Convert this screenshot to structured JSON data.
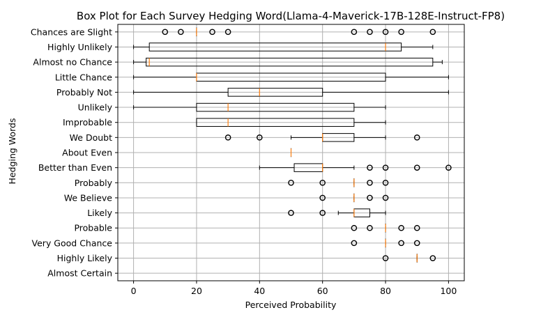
{
  "chart_data": {
    "type": "boxplot",
    "orientation": "horizontal",
    "title": "Box Plot for Each Survey Hedging Word(Llama-4-Maverick-17B-128E-Instruct-FP8)",
    "xlabel": "Perceived Probability",
    "ylabel": "Hedging Words",
    "xlim": [
      -5,
      105
    ],
    "xticks": [
      0,
      20,
      40,
      60,
      80,
      100
    ],
    "grid": true,
    "colors": {
      "box": "#000000",
      "median": "#ff7f0e",
      "grid": "#b0b0b0"
    },
    "categories": [
      "Chances are Slight",
      "Highly Unlikely",
      "Almost no Chance",
      "Little Chance",
      "Probably Not",
      "Unlikely",
      "Improbable",
      "We Doubt",
      "About Even",
      "Better than Even",
      "Probably",
      "We Believe",
      "Likely",
      "Probable",
      "Very Good Chance",
      "Highly Likely",
      "Almost Certain"
    ],
    "boxes": [
      {
        "label": "Chances are Slight",
        "whislo": 20,
        "q1": 20,
        "med": 20,
        "q3": 20,
        "whishi": 20,
        "fliers": [
          10,
          15,
          25,
          30,
          70,
          75,
          80,
          85,
          95
        ]
      },
      {
        "label": "Highly Unlikely",
        "whislo": 0,
        "q1": 5,
        "med": 80,
        "q3": 85,
        "whishi": 95,
        "fliers": []
      },
      {
        "label": "Almost no Chance",
        "whislo": 0,
        "q1": 4,
        "med": 5,
        "q3": 95,
        "whishi": 98,
        "fliers": []
      },
      {
        "label": "Little Chance",
        "whislo": 0,
        "q1": 20,
        "med": 20,
        "q3": 80,
        "whishi": 100,
        "fliers": []
      },
      {
        "label": "Probably Not",
        "whislo": 0,
        "q1": 30,
        "med": 40,
        "q3": 60,
        "whishi": 100,
        "fliers": []
      },
      {
        "label": "Unlikely",
        "whislo": 0,
        "q1": 20,
        "med": 30,
        "q3": 70,
        "whishi": 80,
        "fliers": []
      },
      {
        "label": "Improbable",
        "whislo": 20,
        "q1": 20,
        "med": 30,
        "q3": 70,
        "whishi": 80,
        "fliers": []
      },
      {
        "label": "We Doubt",
        "whislo": 50,
        "q1": 60,
        "med": 60,
        "q3": 70,
        "whishi": 80,
        "fliers": [
          30,
          40,
          90
        ]
      },
      {
        "label": "About Even",
        "whislo": 50,
        "q1": 50,
        "med": 50,
        "q3": 50,
        "whishi": 50,
        "fliers": []
      },
      {
        "label": "Better than Even",
        "whislo": 40,
        "q1": 51,
        "med": 60,
        "q3": 60,
        "whishi": 70,
        "fliers": [
          75,
          80,
          90,
          100
        ]
      },
      {
        "label": "Probably",
        "whislo": 70,
        "q1": 70,
        "med": 70,
        "q3": 70,
        "whishi": 70,
        "fliers": [
          50,
          60,
          75,
          80
        ]
      },
      {
        "label": "We Believe",
        "whislo": 70,
        "q1": 70,
        "med": 70,
        "q3": 70,
        "whishi": 70,
        "fliers": [
          60,
          75,
          80
        ]
      },
      {
        "label": "Likely",
        "whislo": 65,
        "q1": 70,
        "med": 70,
        "q3": 75,
        "whishi": 80,
        "fliers": [
          50,
          60
        ]
      },
      {
        "label": "Probable",
        "whislo": 80,
        "q1": 80,
        "med": 80,
        "q3": 80,
        "whishi": 80,
        "fliers": [
          70,
          75,
          85,
          90
        ]
      },
      {
        "label": "Very Good Chance",
        "whislo": 80,
        "q1": 80,
        "med": 80,
        "q3": 80,
        "whishi": 80,
        "fliers": [
          70,
          85,
          90
        ]
      },
      {
        "label": "Highly Likely",
        "whislo": 90,
        "q1": 90,
        "med": 90,
        "q3": 90,
        "whishi": 90,
        "fliers": [
          80,
          95
        ]
      },
      {
        "label": "Almost Certain",
        "whislo": null,
        "q1": null,
        "med": null,
        "q3": null,
        "whishi": null,
        "fliers": []
      }
    ]
  }
}
